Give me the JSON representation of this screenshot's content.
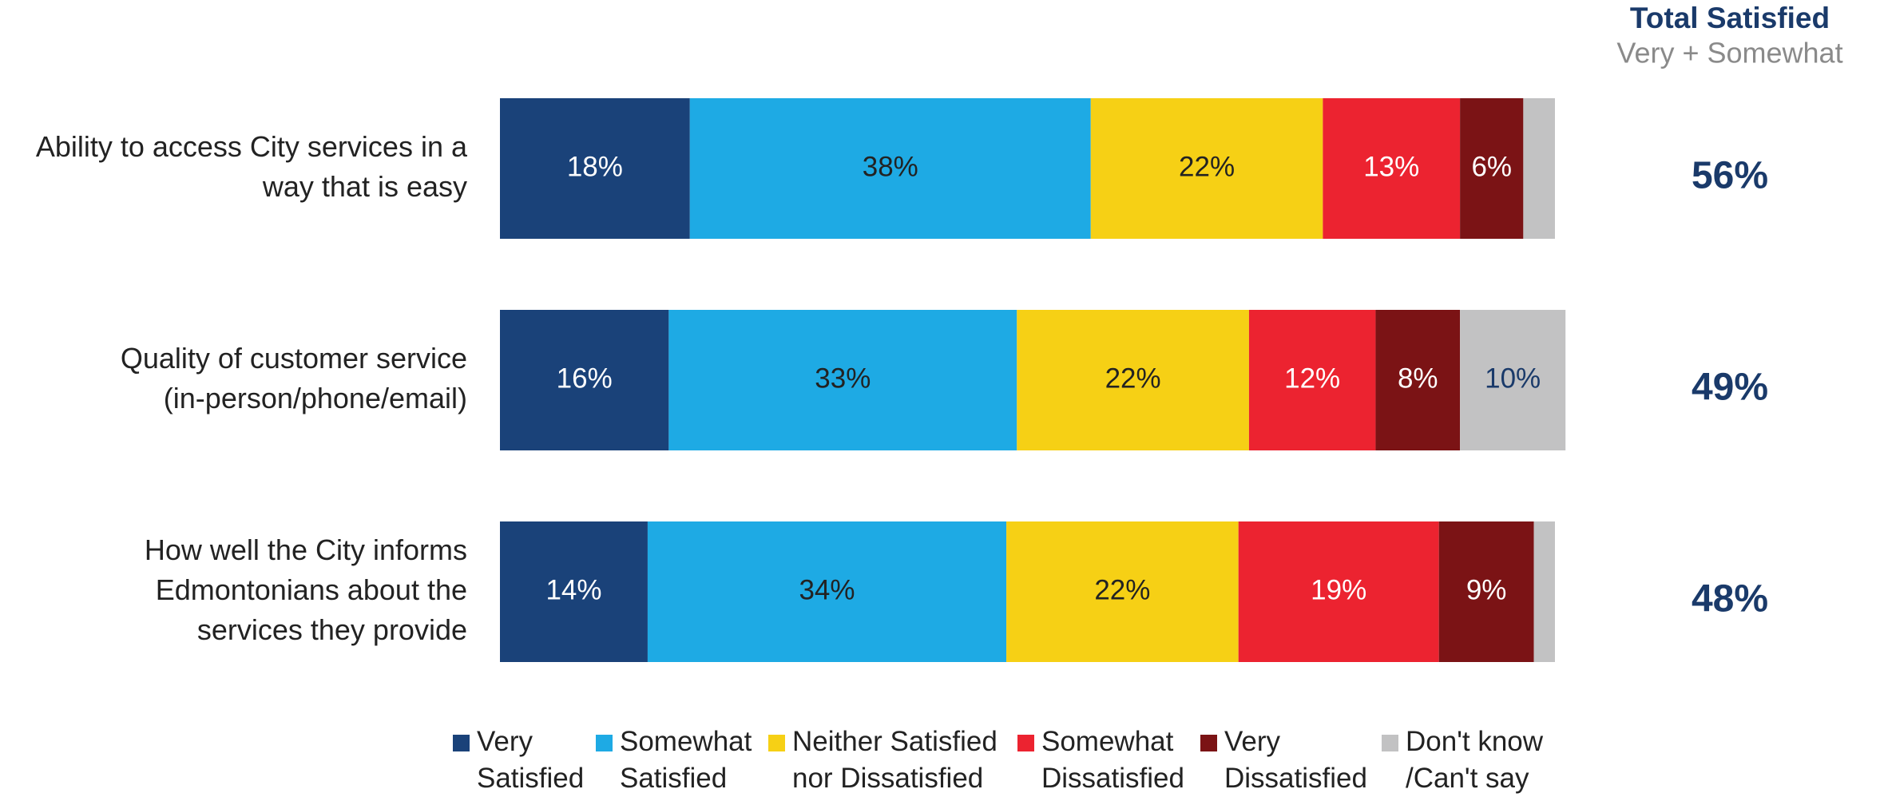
{
  "chart_data": {
    "type": "stacked_barh",
    "categories": [
      "Ability to access City services in a\nway that is easy",
      "Quality of customer service\n(in-person/phone/email)",
      "How well the City informs\nEdmontonians about the\nservices they provide"
    ],
    "xlim": [
      0,
      100
    ],
    "series": [
      {
        "name": "Very\nSatisfied",
        "color": "#1a4279",
        "label_color": "#ffffff",
        "values": [
          18,
          16,
          14
        ],
        "value_labels": [
          "18%",
          "16%",
          "14%"
        ]
      },
      {
        "name": "Somewhat\nSatisfied",
        "color": "#1eaae4",
        "label_color": "#222222",
        "values": [
          38,
          33,
          34
        ],
        "value_labels": [
          "38%",
          "33%",
          "34%"
        ]
      },
      {
        "name": "Neither Satisfied\nnor Dissatisfied",
        "color": "#f6d015",
        "label_color": "#222222",
        "values": [
          22,
          22,
          22
        ],
        "value_labels": [
          "22%",
          "22%",
          "22%"
        ]
      },
      {
        "name": "Somewhat\nDissatisfied",
        "color": "#ec2330",
        "label_color": "#ffffff",
        "values": [
          13,
          12,
          19
        ],
        "value_labels": [
          "13%",
          "12%",
          "19%"
        ]
      },
      {
        "name": "Very\nDissatisfied",
        "color": "#7b1315",
        "label_color": "#ffffff",
        "values": [
          6,
          8,
          9
        ],
        "value_labels": [
          "6%",
          "8%",
          "9%"
        ]
      },
      {
        "name": "Don't know\n/Can't say",
        "color": "#c2c2c3",
        "label_color": "#1a3a6a",
        "values": [
          3,
          10,
          2
        ],
        "value_labels": [
          null,
          "10%",
          null
        ]
      }
    ],
    "total": {
      "title": "Total Satisfied",
      "subtitle": "Very + Somewhat",
      "values": [
        56,
        49,
        48
      ],
      "value_labels": [
        "56%",
        "49%",
        "48%"
      ]
    }
  }
}
